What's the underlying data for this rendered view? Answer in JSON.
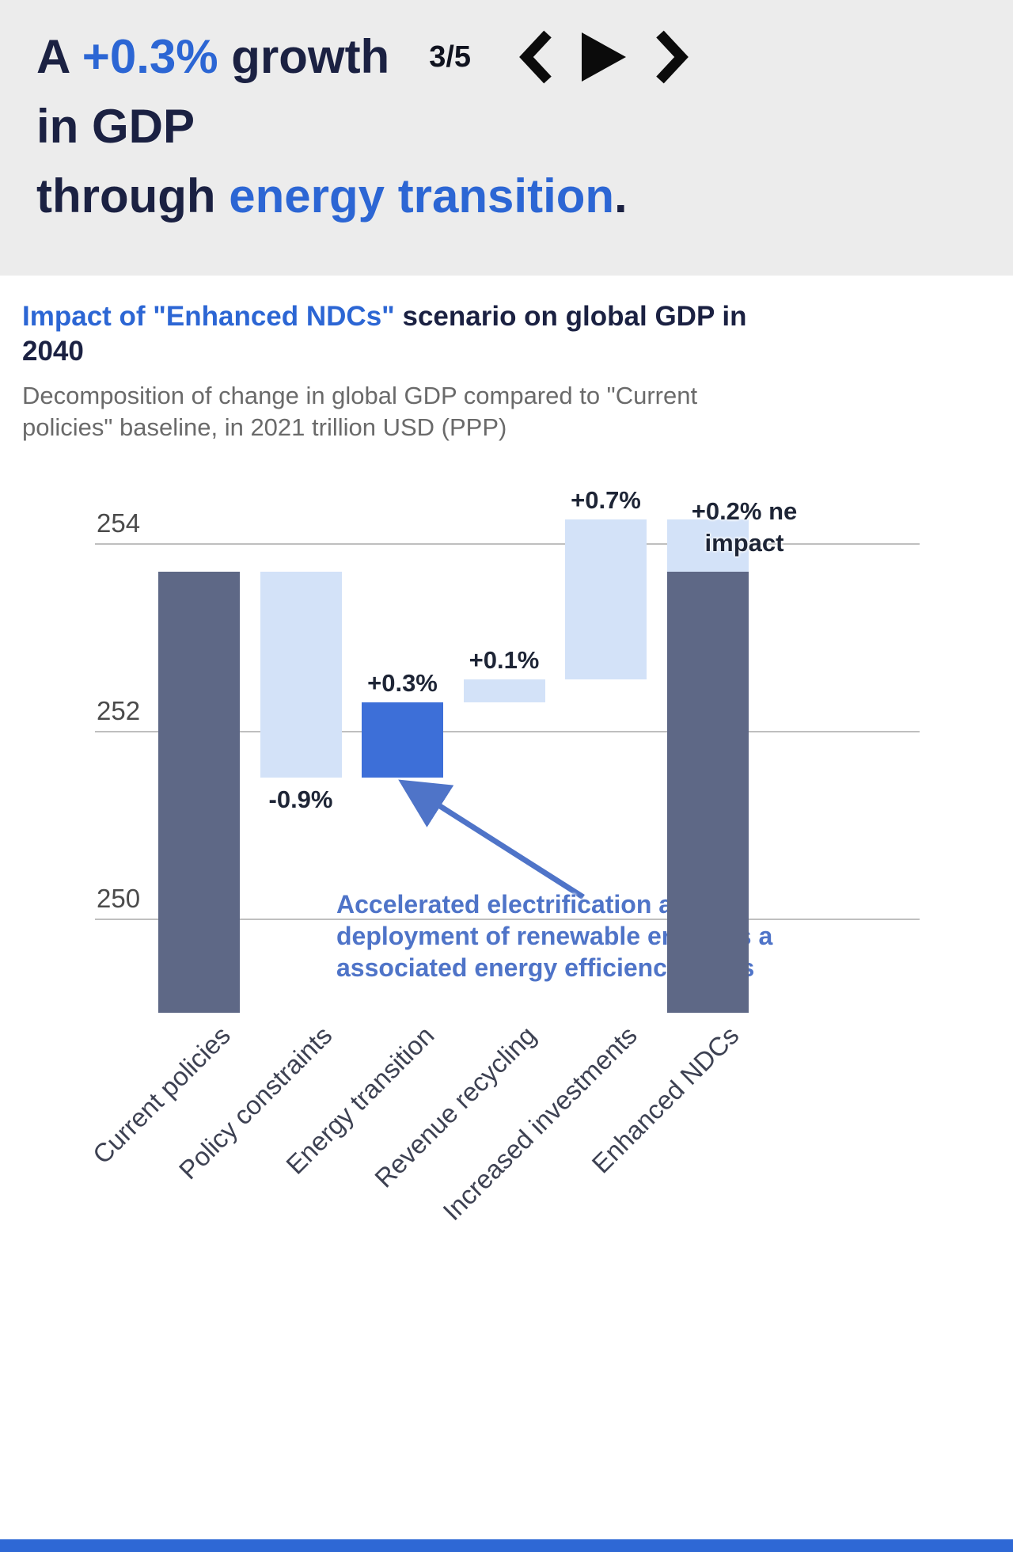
{
  "header": {
    "title_line1_prefix": "A ",
    "title_line1_highlight": "+0.3%",
    "title_line1_suffix": " growth",
    "title_line2": "in GDP",
    "title_line3_prefix": "through ",
    "title_line3_highlight": "energy transition",
    "title_line3_suffix": ".",
    "slide_counter": "3/5"
  },
  "chart": {
    "title_highlight": "Impact of \"Enhanced NDCs\"",
    "title_rest": " scenario on global GDP in 2040",
    "subtitle": "Decomposition of change in global GDP compared to \"Current policies\" baseline, in 2021 trillion USD (PPP)"
  },
  "chart_data": {
    "type": "waterfall",
    "title": "Impact of \"Enhanced NDCs\" scenario on global GDP in 2040",
    "subtitle": "Decomposition of change in global GDP compared to \"Current policies\" baseline, in 2021 trillion USD (PPP)",
    "unit": "2021 trillion USD (PPP)",
    "ylim": [
      249.0,
      254.7
    ],
    "yticks": [
      254,
      252,
      250
    ],
    "grid": true,
    "legend": false,
    "categories": [
      "Current policies",
      "Policy constraints",
      "Energy transition",
      "Revenue recycling",
      "Increased investments",
      "Enhanced NDCs"
    ],
    "baseline_value": 253.7,
    "final_value": 254.25,
    "net_impact_label_lines": [
      "+0.2% ne",
      "impact"
    ],
    "bars": [
      {
        "category": "Current policies",
        "role": "total",
        "segments": [
          {
            "from": 249.0,
            "to": 253.7,
            "color": "dark"
          }
        ]
      },
      {
        "category": "Policy constraints",
        "role": "decrease",
        "delta_label": "-0.9%",
        "label_position": "below",
        "segments": [
          {
            "from": 251.5,
            "to": 253.7,
            "color": "light"
          }
        ]
      },
      {
        "category": "Energy transition",
        "role": "increase",
        "delta_label": "+0.3%",
        "label_position": "above",
        "segments": [
          {
            "from": 251.5,
            "to": 252.3,
            "color": "accent"
          }
        ]
      },
      {
        "category": "Revenue recycling",
        "role": "increase",
        "delta_label": "+0.1%",
        "label_position": "above",
        "segments": [
          {
            "from": 252.3,
            "to": 252.55,
            "color": "light"
          }
        ]
      },
      {
        "category": "Increased investments",
        "role": "increase",
        "delta_label": "+0.7%",
        "label_position": "above",
        "segments": [
          {
            "from": 252.55,
            "to": 254.25,
            "color": "light"
          }
        ]
      },
      {
        "category": "Enhanced NDCs",
        "role": "total",
        "delta_label_lines": [
          "+0.2% ne",
          "impact"
        ],
        "segments": [
          {
            "from": 249.0,
            "to": 253.7,
            "color": "dark"
          },
          {
            "from": 253.7,
            "to": 254.25,
            "color": "light"
          }
        ]
      }
    ],
    "callout": {
      "lines": [
        "Accelerated electrification and",
        "deployment of renewable energies a",
        "associated energy efficiency gains"
      ],
      "target": "Energy transition"
    }
  },
  "colors": {
    "accent_blue": "#2c66d4",
    "dark_navy": "#1b2142",
    "header_bg": "#ececec",
    "bar_dark": "#5e6886",
    "bar_light": "#d3e2f8",
    "bar_accent": "#3d6fd8",
    "annotation_blue": "#4f74c8",
    "value_label": "#1e2536",
    "footer_bar": "#2e68d5"
  }
}
